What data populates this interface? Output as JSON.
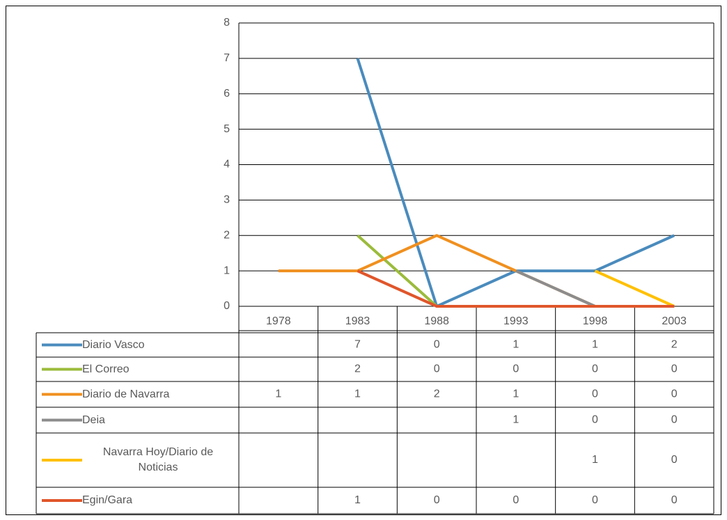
{
  "chart_data": {
    "type": "line",
    "categories": [
      "1978",
      "1983",
      "1988",
      "1993",
      "1998",
      "2003"
    ],
    "ylim": [
      0,
      8
    ],
    "yticks": [
      0,
      1,
      2,
      3,
      4,
      5,
      6,
      7,
      8
    ],
    "grid": true,
    "series": [
      {
        "name": "Diario Vasco",
        "color": "#4a8bbd",
        "values": [
          null,
          7,
          0,
          1,
          1,
          2
        ]
      },
      {
        "name": "El Correo",
        "color": "#9bbb3b",
        "values": [
          null,
          2,
          0,
          0,
          0,
          0
        ]
      },
      {
        "name": "Diario de Navarra",
        "color": "#f0901f",
        "values": [
          1,
          1,
          2,
          1,
          0,
          0
        ]
      },
      {
        "name": "Deia",
        "color": "#8c8c8c",
        "values": [
          null,
          null,
          null,
          1,
          0,
          0
        ]
      },
      {
        "name": "Navarra Hoy/Diario de Noticias",
        "color": "#ffc000",
        "values": [
          null,
          null,
          null,
          null,
          1,
          0
        ]
      },
      {
        "name": "Egin/Gara",
        "color": "#e0562b",
        "values": [
          null,
          1,
          0,
          0,
          0,
          0
        ]
      }
    ]
  }
}
